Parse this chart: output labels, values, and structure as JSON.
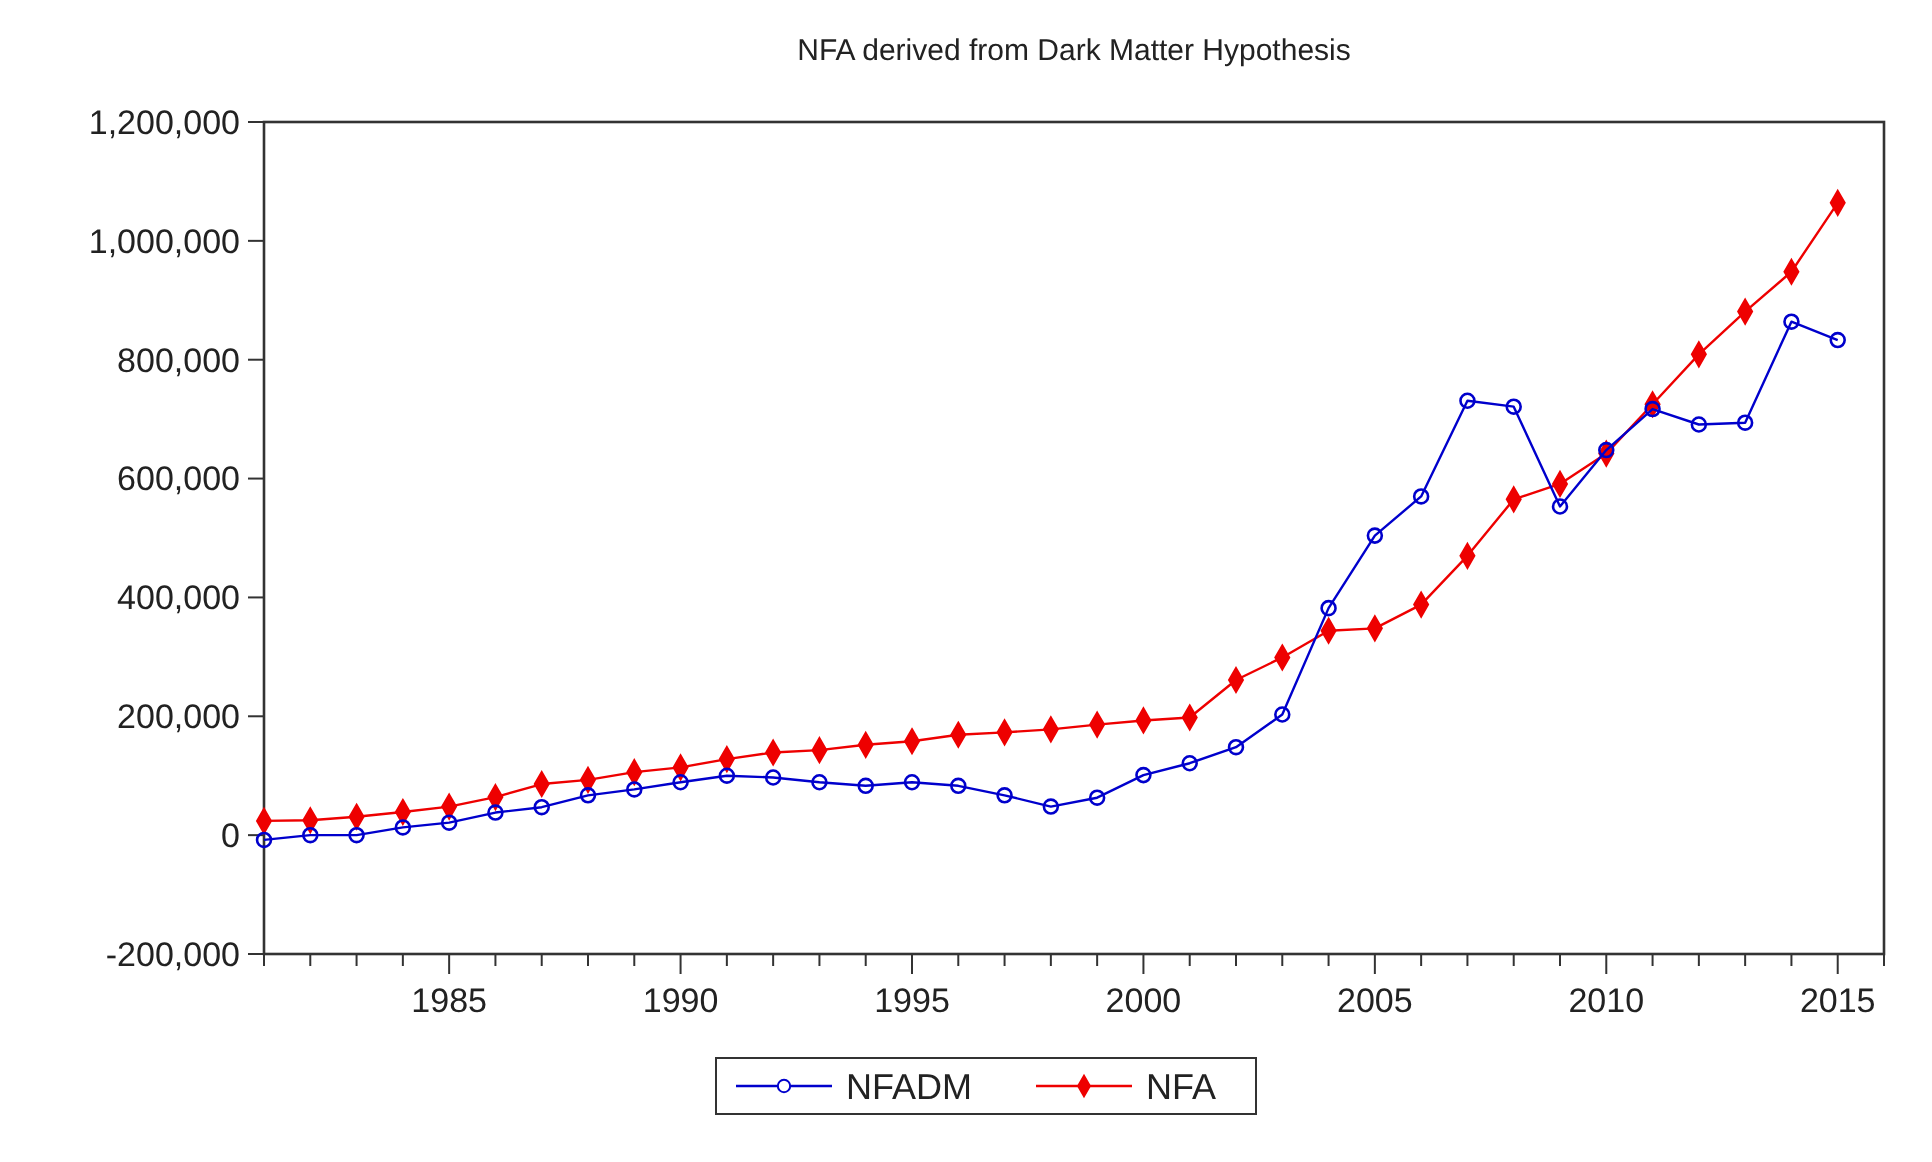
{
  "chart_data": {
    "type": "line",
    "title": "NFA derived from Dark Matter Hypothesis",
    "x": [
      1981,
      1982,
      1983,
      1984,
      1985,
      1986,
      1987,
      1988,
      1989,
      1990,
      1991,
      1992,
      1993,
      1994,
      1995,
      1996,
      1997,
      1998,
      1999,
      2000,
      2001,
      2002,
      2003,
      2004,
      2005,
      2006,
      2007,
      2008,
      2009,
      2010,
      2011,
      2012,
      2013,
      2014,
      2015
    ],
    "series": [
      {
        "name": "NFADM",
        "color": "#0000cc",
        "marker": "circle",
        "values": [
          -8000,
          0,
          0,
          13000,
          21000,
          38000,
          47000,
          67000,
          77000,
          89000,
          100000,
          97000,
          89000,
          83000,
          89000,
          83000,
          67000,
          48000,
          63000,
          101000,
          121000,
          148000,
          203000,
          382000,
          504000,
          570000,
          731000,
          721000,
          553000,
          648000,
          717000,
          691000,
          694000,
          864000,
          833000
        ]
      },
      {
        "name": "NFA",
        "color": "#ee0000",
        "marker": "diamond",
        "values": [
          24000,
          25000,
          31000,
          39000,
          48000,
          64000,
          86000,
          93000,
          106000,
          114000,
          128000,
          139000,
          143000,
          152000,
          158000,
          169000,
          173000,
          178000,
          186000,
          193000,
          198000,
          261000,
          299000,
          344000,
          348000,
          388000,
          470000,
          565000,
          591000,
          642000,
          725000,
          809000,
          881000,
          948000,
          1064000
        ]
      }
    ],
    "xlim": [
      1981,
      2016
    ],
    "xticks": [
      {
        "value": 1981,
        "label": null
      },
      {
        "value": 1982,
        "label": null
      },
      {
        "value": 1983,
        "label": null
      },
      {
        "value": 1984,
        "label": null
      },
      1985,
      {
        "value": 1986,
        "label": null
      },
      {
        "value": 1987,
        "label": null
      },
      {
        "value": 1988,
        "label": null
      },
      {
        "value": 1989,
        "label": null
      },
      1990,
      {
        "value": 1991,
        "label": null
      },
      {
        "value": 1992,
        "label": null
      },
      {
        "value": 1993,
        "label": null
      },
      {
        "value": 1994,
        "label": null
      },
      1995,
      {
        "value": 1996,
        "label": null
      },
      {
        "value": 1997,
        "label": null
      },
      {
        "value": 1998,
        "label": null
      },
      {
        "value": 1999,
        "label": null
      },
      2000,
      {
        "value": 2001,
        "label": null
      },
      {
        "value": 2002,
        "label": null
      },
      {
        "value": 2003,
        "label": null
      },
      {
        "value": 2004,
        "label": null
      },
      2005,
      {
        "value": 2006,
        "label": null
      },
      {
        "value": 2007,
        "label": null
      },
      {
        "value": 2008,
        "label": null
      },
      {
        "value": 2009,
        "label": null
      },
      2010,
      {
        "value": 2011,
        "label": null
      },
      {
        "value": 2012,
        "label": null
      },
      {
        "value": 2013,
        "label": null
      },
      {
        "value": 2014,
        "label": null
      },
      2015,
      {
        "value": 2016,
        "label": null
      }
    ],
    "ylim": [
      -200000,
      1200000
    ],
    "yticks": [
      {
        "value": -200000,
        "label": "-200,000"
      },
      {
        "value": 0,
        "label": "0"
      },
      {
        "value": 200000,
        "label": "200,000"
      },
      {
        "value": 400000,
        "label": "400,000"
      },
      {
        "value": 600000,
        "label": "600,000"
      },
      {
        "value": 800000,
        "label": "800,000"
      },
      {
        "value": 1000000,
        "label": "1,000,000"
      },
      {
        "value": 1200000,
        "label": "1,200,000"
      }
    ],
    "grid": false,
    "legend": "bottom",
    "line_style": "solid"
  }
}
